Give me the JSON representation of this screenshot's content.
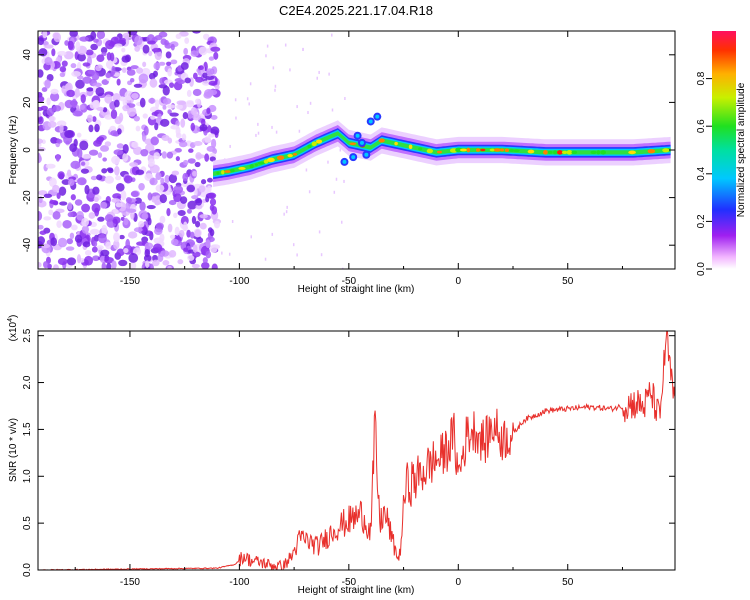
{
  "title": "C2E4.2025.221.17.04.R18",
  "chart_data": [
    {
      "type": "heatmap",
      "xlabel": "Height of straight line (km)",
      "ylabel": "Frequency (Hz)",
      "xlim": [
        -192,
        99
      ],
      "ylim": [
        -50,
        50
      ],
      "xticks": [
        -150,
        -100,
        -50,
        0,
        50
      ],
      "yticks": [
        -40,
        -20,
        0,
        20,
        40
      ],
      "colorbar": {
        "label": "Normalized spectral amplitude",
        "range": [
          0,
          1
        ],
        "ticks": [
          0.0,
          0.2,
          0.4,
          0.6,
          0.8
        ],
        "colormap": "rainbow (white-magenta-purple-blue-cyan-green-yellow-red)"
      },
      "ridge": {
        "x": [
          -112,
          -105,
          -95,
          -85,
          -75,
          -65,
          -55,
          -50,
          -45,
          -40,
          -35,
          -30,
          -20,
          -10,
          0,
          20,
          40,
          60,
          80,
          97
        ],
        "y": [
          -10,
          -9,
          -7,
          -4,
          -2,
          3,
          7,
          3,
          2,
          1,
          4,
          3,
          1,
          -1,
          0,
          0,
          -1,
          -1,
          -1,
          0
        ]
      },
      "noise_region_x": [
        -192,
        -110
      ]
    },
    {
      "type": "line",
      "xlabel": "Height of straight line (km)",
      "ylabel": "SNR (10 * v/v)",
      "ymultiplier": "(x10",
      "ymultiplier_exp": "4",
      "ymultiplier_close": ")",
      "xlim": [
        -192,
        99
      ],
      "ylim": [
        0,
        2.55
      ],
      "xticks": [
        -150,
        -100,
        -50,
        0,
        50
      ],
      "yticks": [
        0.0,
        0.5,
        1.0,
        1.5,
        2.0,
        2.5
      ],
      "series": [
        {
          "color": "#e8302c",
          "x": [
            -192,
            -150,
            -110,
            -102,
            -98,
            -95,
            -90,
            -85,
            -80,
            -76,
            -72,
            -68,
            -64,
            -60,
            -56,
            -52,
            -48,
            -44,
            -40,
            -38,
            -36,
            -34,
            -32,
            -30,
            -27,
            -24,
            -20,
            -16,
            -12,
            -8,
            -5,
            -2,
            0,
            4,
            8,
            12,
            16,
            20,
            25,
            30,
            40,
            50,
            60,
            70,
            80,
            85,
            88,
            92,
            95,
            99
          ],
          "y": [
            0.0,
            0.01,
            0.02,
            0.06,
            0.15,
            0.1,
            0.08,
            0.05,
            0.04,
            0.15,
            0.35,
            0.3,
            0.25,
            0.35,
            0.45,
            0.5,
            0.55,
            0.6,
            0.4,
            1.5,
            0.5,
            0.6,
            0.5,
            0.3,
            0.1,
            0.9,
            0.95,
            1.05,
            1.15,
            1.2,
            1.3,
            1.45,
            1.0,
            1.45,
            1.5,
            1.35,
            1.55,
            1.4,
            1.45,
            1.6,
            1.7,
            1.72,
            1.74,
            1.72,
            1.78,
            1.75,
            1.9,
            1.6,
            2.5,
            1.7
          ]
        }
      ]
    }
  ]
}
